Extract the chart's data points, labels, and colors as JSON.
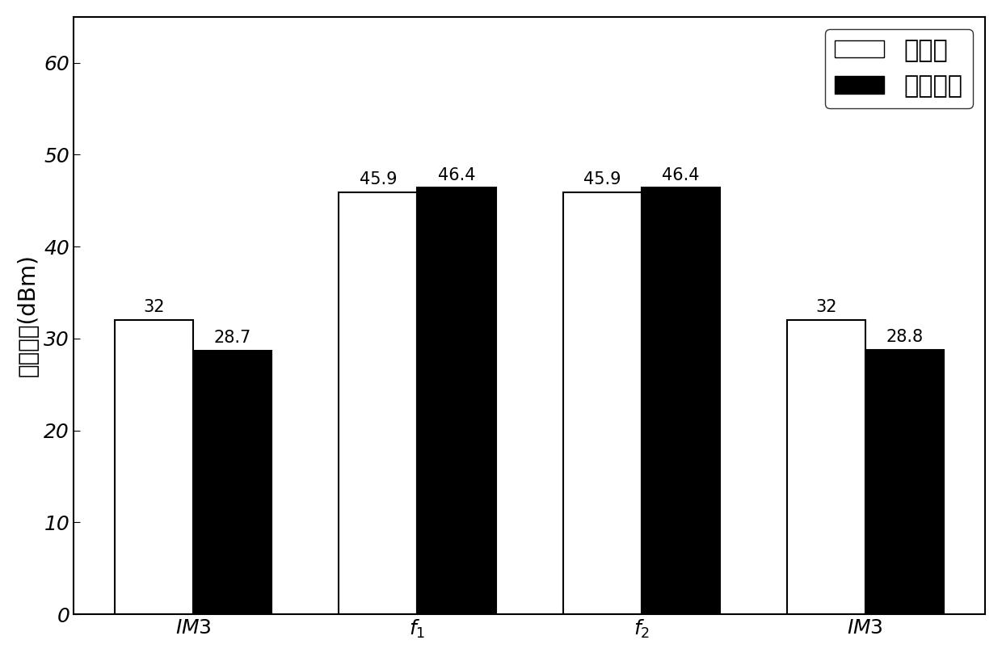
{
  "categories": [
    "IM3",
    "f_1",
    "f_2",
    "IM3_2"
  ],
  "category_labels": [
    "$IM3$",
    "$f_1$",
    "$f_2$",
    "$IM3$"
  ],
  "method1_values": [
    32,
    45.9,
    45.9,
    32
  ],
  "method2_values": [
    28.7,
    46.4,
    46.4,
    28.8
  ],
  "method1_labels": [
    "32",
    "45.9",
    "45.9",
    "32"
  ],
  "method2_labels": [
    "28.7",
    "46.4",
    "46.4",
    "28.8"
  ],
  "method1_color": "#ffffff",
  "method2_color": "#000000",
  "bar_edge_color": "#000000",
  "bar_width": 0.35,
  "ylim": [
    0,
    65
  ],
  "yticks": [
    0,
    10,
    20,
    30,
    40,
    50,
    60
  ],
  "ylabel": "输出功率(dBm)",
  "legend_labels": [
    "本方法",
    "数値模拟"
  ],
  "background_color": "#ffffff",
  "tick_fontsize": 18,
  "ylabel_fontsize": 20,
  "annotation_fontsize": 15,
  "legend_fontsize": 22
}
